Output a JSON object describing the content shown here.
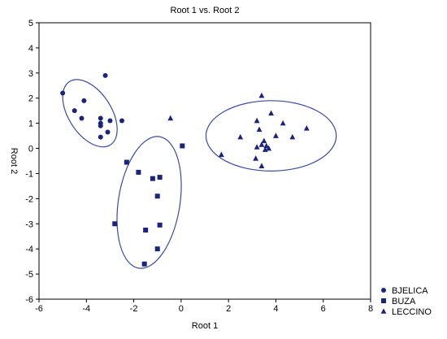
{
  "chart_data": {
    "type": "scatter",
    "title": "Root 1 vs. Root 2",
    "xlabel": "Root 1",
    "ylabel": "Root 2",
    "xlim": [
      -6,
      8
    ],
    "ylim": [
      -6,
      5
    ],
    "xticks": [
      -6,
      -4,
      -2,
      0,
      2,
      4,
      6,
      8
    ],
    "yticks": [
      -6,
      -5,
      -4,
      -3,
      -2,
      -1,
      0,
      1,
      2,
      3,
      4,
      5
    ],
    "grid": false,
    "legend_position": "bottom-right",
    "marker_color": "#1a237e",
    "ellipse_color": "#3949ab",
    "series": [
      {
        "name": "BJELICA",
        "marker": "circle",
        "points": [
          [
            -3.2,
            2.9
          ],
          [
            -5.0,
            2.2
          ],
          [
            -4.1,
            1.9
          ],
          [
            -4.5,
            1.5
          ],
          [
            -4.2,
            1.2
          ],
          [
            -3.4,
            1.2
          ],
          [
            -3.0,
            1.1
          ],
          [
            -2.5,
            1.1
          ],
          [
            -3.4,
            1.0
          ],
          [
            -3.4,
            0.9
          ],
          [
            -3.1,
            0.65
          ],
          [
            -3.4,
            0.45
          ]
        ],
        "ellipse": {
          "cx": -3.85,
          "cy": 1.4,
          "rx": 0.9,
          "ry": 1.5,
          "rotation_deg": -33
        }
      },
      {
        "name": "BUZA",
        "marker": "square",
        "points": [
          [
            -2.3,
            -0.55
          ],
          [
            -1.8,
            -0.95
          ],
          [
            -1.2,
            -1.2
          ],
          [
            -0.9,
            -1.15
          ],
          [
            0.05,
            0.1
          ],
          [
            -1.0,
            -1.9
          ],
          [
            -2.8,
            -3.0
          ],
          [
            -0.9,
            -3.05
          ],
          [
            -1.5,
            -3.25
          ],
          [
            -1.0,
            -4.0
          ],
          [
            -1.55,
            -4.6
          ]
        ],
        "ellipse": {
          "cx": -1.35,
          "cy": -2.15,
          "rx": 1.3,
          "ry": 2.65,
          "rotation_deg": 9
        }
      },
      {
        "name": "LECCINO",
        "marker": "triangle",
        "points": [
          [
            -0.45,
            1.2
          ],
          [
            3.4,
            2.1
          ],
          [
            3.8,
            1.4
          ],
          [
            3.2,
            1.1
          ],
          [
            4.3,
            1.0
          ],
          [
            5.3,
            0.8
          ],
          [
            3.3,
            0.75
          ],
          [
            4.0,
            0.5
          ],
          [
            2.5,
            0.45
          ],
          [
            4.7,
            0.45
          ],
          [
            3.5,
            0.3
          ],
          [
            3.4,
            0.15
          ],
          [
            3.6,
            0.1
          ],
          [
            3.7,
            0.0
          ],
          [
            3.2,
            0.05
          ],
          [
            3.55,
            -0.05
          ],
          [
            1.7,
            -0.25
          ],
          [
            3.15,
            -0.4
          ],
          [
            3.4,
            -0.7
          ]
        ],
        "ellipse": {
          "cx": 3.8,
          "cy": 0.5,
          "rx": 2.75,
          "ry": 1.4,
          "rotation_deg": 0
        }
      }
    ]
  }
}
